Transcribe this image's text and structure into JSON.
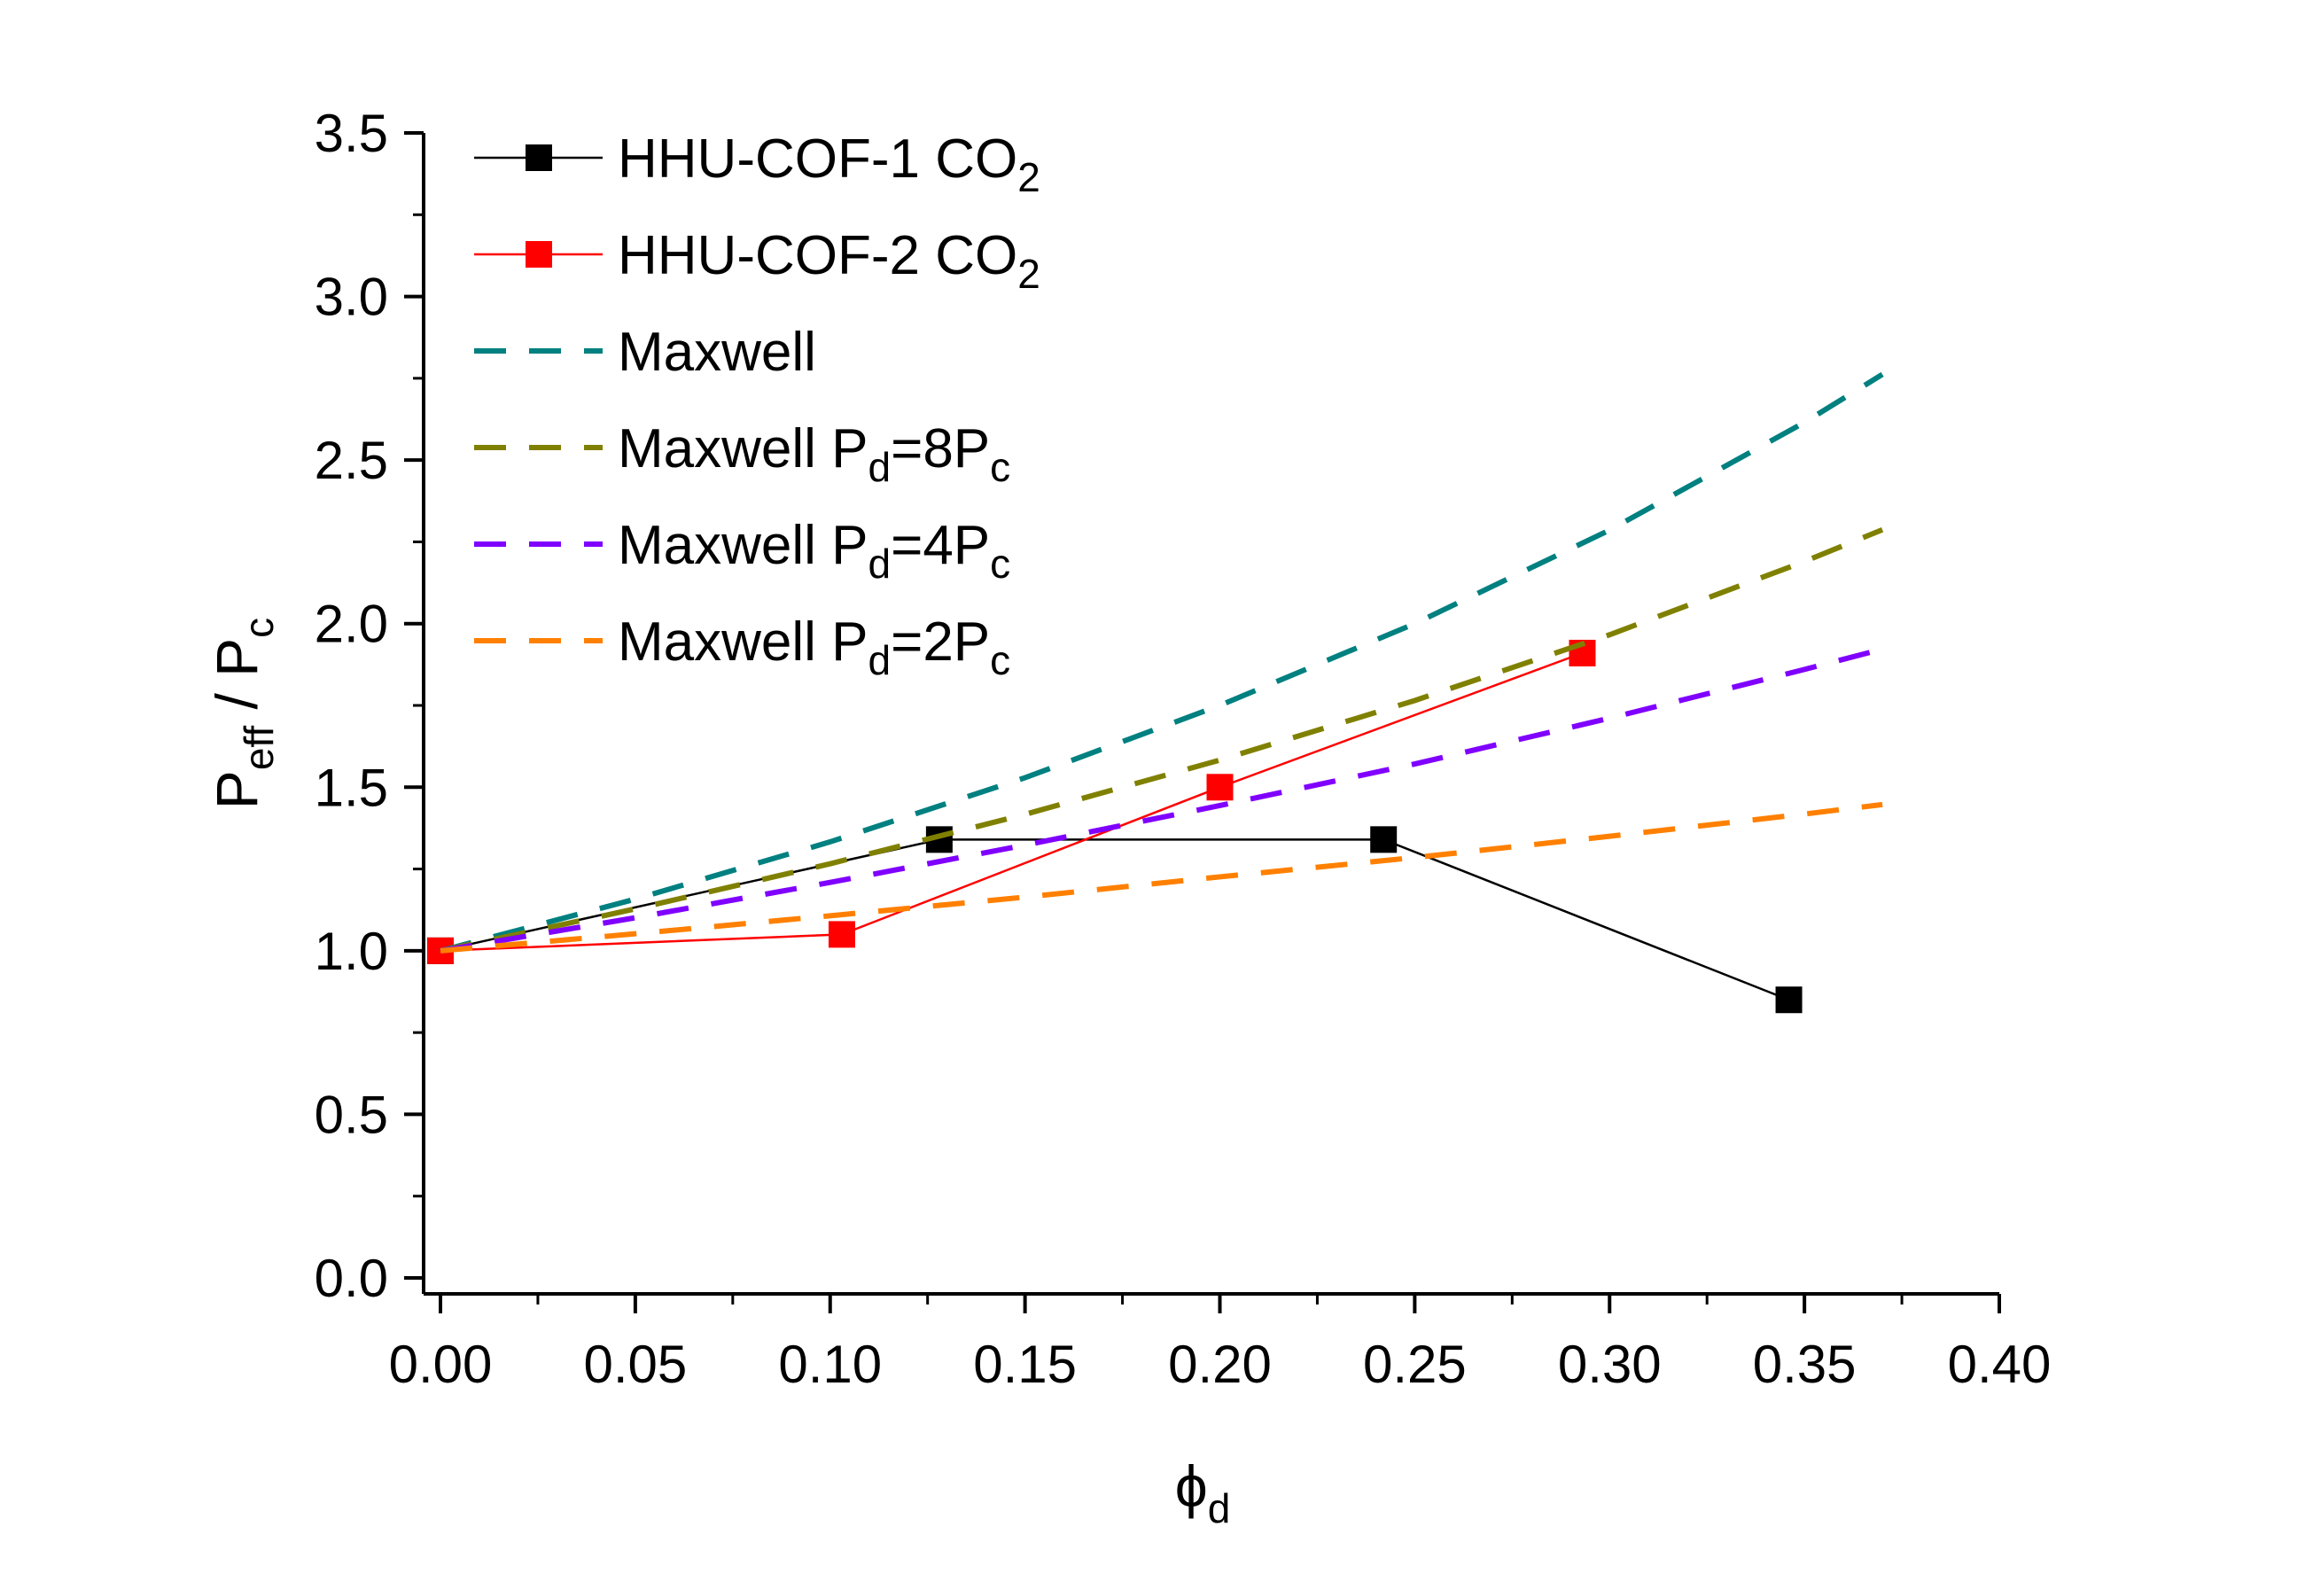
{
  "chart_data": {
    "type": "line",
    "title": "",
    "xlabel": {
      "main": "ϕ",
      "sub": "d"
    },
    "ylabel": {
      "p1": "P",
      "s1": "eff",
      "p2": " / P",
      "s2": "c"
    },
    "xlim": [
      0,
      0.4
    ],
    "ylim": [
      0,
      3.5
    ],
    "x_ticks": [
      0.0,
      0.05,
      0.1,
      0.15,
      0.2,
      0.25,
      0.3,
      0.35,
      0.4
    ],
    "y_ticks": [
      0.0,
      0.5,
      1.0,
      1.5,
      2.0,
      2.5,
      3.0,
      3.5
    ],
    "x_tick_labels": [
      "0.00",
      "0.05",
      "0.10",
      "0.15",
      "0.20",
      "0.25",
      "0.30",
      "0.35",
      "0.40"
    ],
    "y_tick_labels": [
      "0.0",
      "0.5",
      "1.0",
      "1.5",
      "2.0",
      "2.5",
      "3.0",
      "3.5"
    ],
    "grid": false,
    "legend_position": "top-left",
    "series": [
      {
        "name": "HHU-COF-1 CO2",
        "legend": {
          "text": "HHU-COF-1 CO",
          "sub": "2",
          "tail": ""
        },
        "color": "#000000",
        "style": "solid-square-markers",
        "x": [
          0.0,
          0.128,
          0.242,
          0.346
        ],
        "y": [
          1.0,
          1.34,
          1.34,
          0.85
        ]
      },
      {
        "name": "HHU-COF-2 CO2",
        "legend": {
          "text": "HHU-COF-2 CO",
          "sub": "2",
          "tail": ""
        },
        "color": "#ff0000",
        "style": "solid-square-markers",
        "x": [
          0.0,
          0.103,
          0.2,
          0.293
        ],
        "y": [
          1.0,
          1.05,
          1.5,
          1.91
        ]
      },
      {
        "name": "Maxwell",
        "legend": {
          "text": "Maxwell",
          "sub": "",
          "tail": ""
        },
        "color": "#008080",
        "style": "dashed",
        "ratio": null,
        "x": [
          0.0,
          0.05,
          0.1,
          0.15,
          0.2,
          0.25,
          0.3,
          0.35,
          0.37
        ],
        "y": [
          1.0,
          1.158,
          1.333,
          1.529,
          1.75,
          2.0,
          2.286,
          2.615,
          2.762
        ]
      },
      {
        "name": "Maxwell Pd=8Pc",
        "legend": {
          "text": "Maxwell P",
          "sub": "d",
          "tail": "=8P",
          "sub2": "c"
        },
        "color": "#808000",
        "style": "dashed",
        "ratio": 8,
        "x": [
          0.0,
          0.05,
          0.1,
          0.15,
          0.2,
          0.25,
          0.3,
          0.35,
          0.37
        ],
        "y": [
          1.0,
          1.128,
          1.266,
          1.417,
          1.583,
          1.765,
          1.966,
          2.19,
          2.287
        ]
      },
      {
        "name": "Maxwell Pd=4Pc",
        "legend": {
          "text": "Maxwell P",
          "sub": "d",
          "tail": "=4P",
          "sub2": "c"
        },
        "color": "#8000ff",
        "style": "dashed",
        "ratio": 4,
        "x": [
          0.0,
          0.05,
          0.1,
          0.15,
          0.2,
          0.25,
          0.3,
          0.35,
          0.37
        ],
        "y": [
          1.0,
          1.101,
          1.209,
          1.323,
          1.444,
          1.571,
          1.711,
          1.86,
          1.922
        ]
      },
      {
        "name": "Maxwell Pd=2Pc",
        "legend": {
          "text": "Maxwell P",
          "sub": "d",
          "tail": "=2P",
          "sub2": "c"
        },
        "color": "#ff8000",
        "style": "dashed",
        "ratio": 2,
        "x": [
          0.0,
          0.05,
          0.1,
          0.15,
          0.2,
          0.25,
          0.3,
          0.35,
          0.37
        ],
        "y": [
          1.0,
          1.052,
          1.107,
          1.164,
          1.226,
          1.285,
          1.35,
          1.418,
          1.447
        ]
      }
    ]
  }
}
